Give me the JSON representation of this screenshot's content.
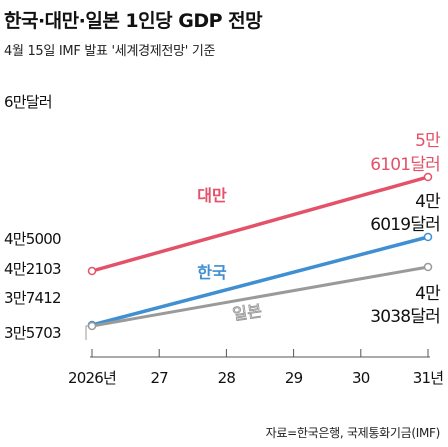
{
  "title": "한국·대만·일본 1인당 GDP 전망",
  "subtitle": "4월 15일 IMF 발표 '세계경제전망' 기준",
  "source": "자료=한국은행, 국제통화기금(IMF)",
  "colors": {
    "대만": "#e35268",
    "한국": "#3f8fd2",
    "일본": "#9a9a9a",
    "axis": "#555555"
  },
  "y_labels": [
    {
      "text": "6만달러",
      "value": 60000
    },
    {
      "text": "4만5000",
      "value": 45000
    },
    {
      "text": "4만2103",
      "value": 42103
    },
    {
      "text": "3만7412",
      "value": 37412
    },
    {
      "text": "3만5703",
      "value": 35703
    }
  ],
  "x_labels": [
    "2026년",
    "27",
    "28",
    "29",
    "30",
    "31년"
  ],
  "series_labels": {
    "대만": "대만",
    "한국": "한국",
    "일본": "일본"
  },
  "end_labels": {
    "대만": {
      "line1": "5만",
      "line2": "6101달러"
    },
    "한국": {
      "line1": "4만",
      "line2": "6019달러"
    },
    "일본": {
      "line1": "4만",
      "line2": "3038달러"
    }
  },
  "chart_data": {
    "type": "line",
    "title": "한국·대만·일본 1인당 GDP 전망",
    "subtitle": "4월 15일 IMF 발표 '세계경제전망' 기준",
    "x": [
      2026,
      2027,
      2028,
      2029,
      2030,
      2031
    ],
    "x_tick_labels": [
      "2026년",
      "27",
      "28",
      "29",
      "30",
      "31년"
    ],
    "ylim": [
      35000,
      60000
    ],
    "grid": false,
    "series": [
      {
        "name": "대만",
        "color": "#e35268",
        "start": 42103,
        "end": 56101,
        "start_label": "4만2103",
        "end_label": "5만6101달러"
      },
      {
        "name": "한국",
        "color": "#3f8fd2",
        "start": 37412,
        "end": 46019,
        "start_label": "3만7412",
        "end_label": "4만6019달러"
      },
      {
        "name": "일본",
        "color": "#9a9a9a",
        "start": 35703,
        "end": 43038,
        "start_label": "3만5703",
        "end_label": "4만3038달러"
      }
    ],
    "source": "자료=한국은행, 국제통화기금(IMF)"
  }
}
